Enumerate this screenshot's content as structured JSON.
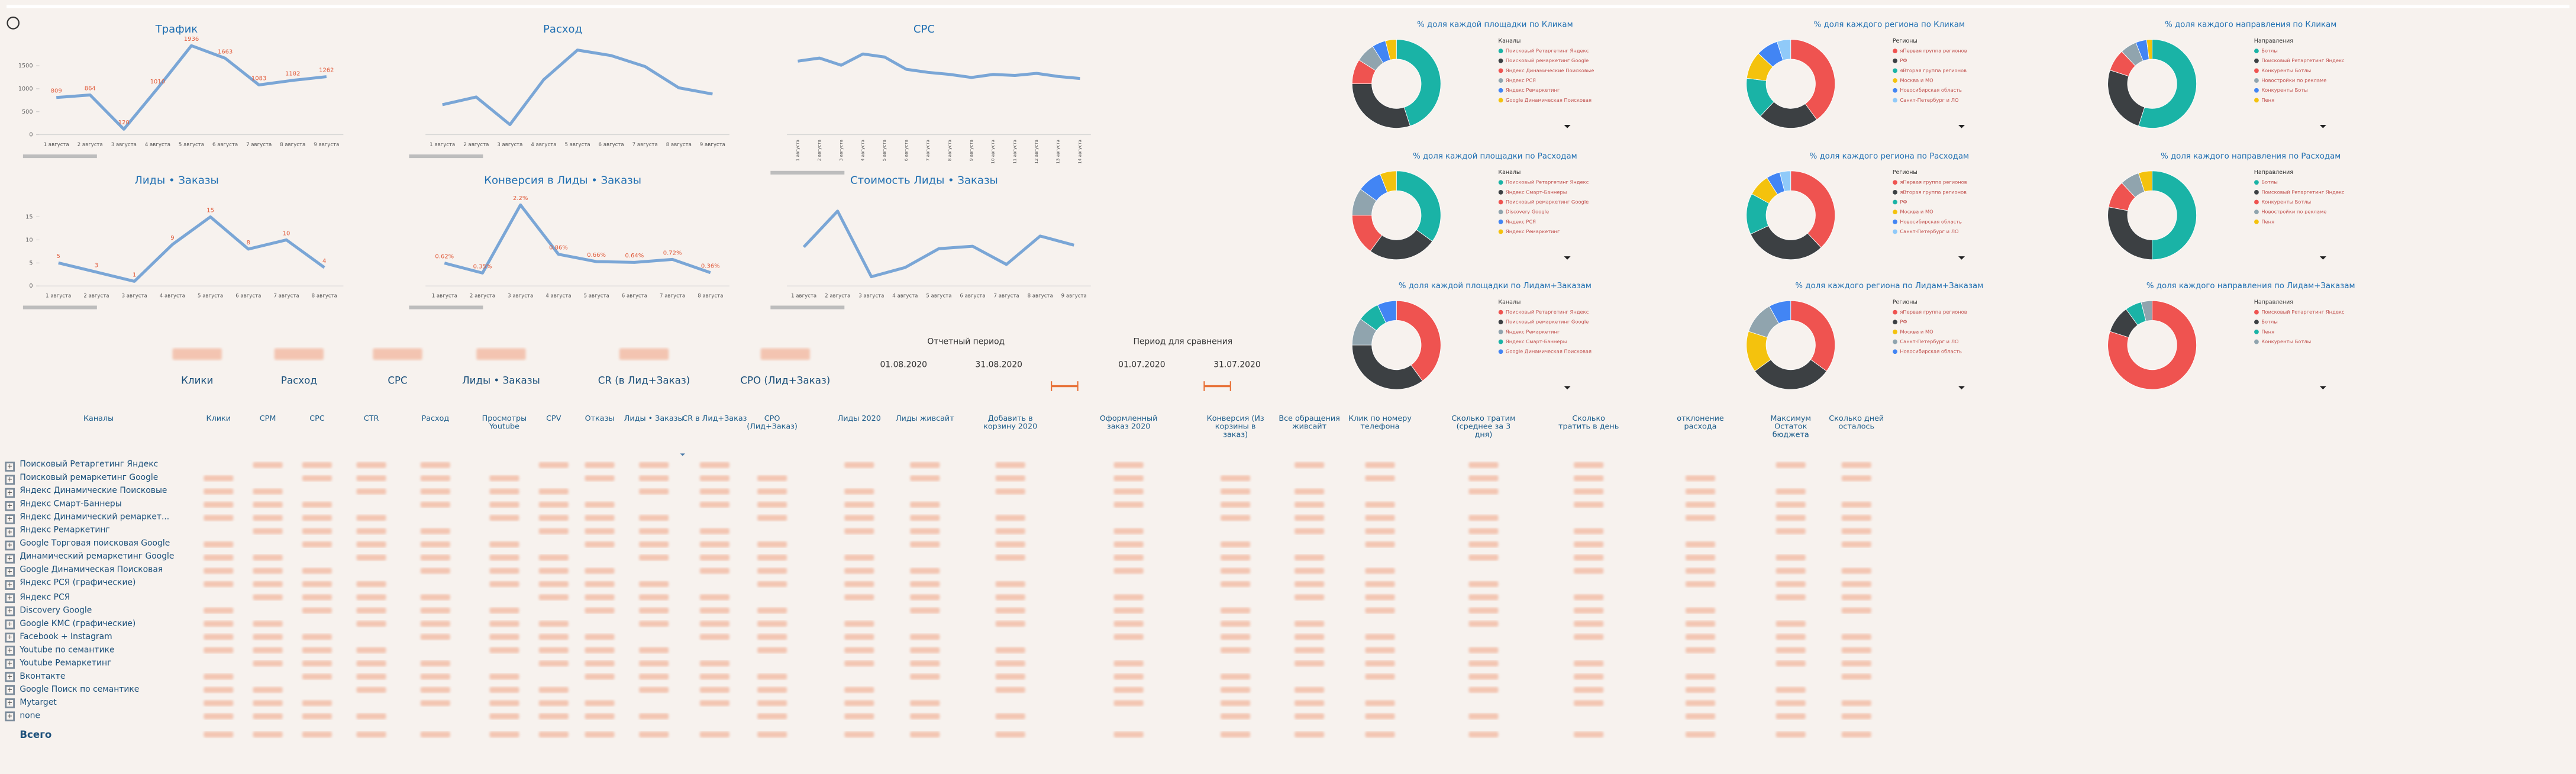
{
  "chart_data": [
    {
      "type": "line",
      "title": "Трафик",
      "categories": [
        "1 августа",
        "2 августа",
        "3 августа",
        "4 августа",
        "5 августа",
        "6 августа",
        "7 августа",
        "8 августа",
        "9 августа"
      ],
      "values": [
        809,
        864,
        120,
        1010,
        1936,
        1663,
        1083,
        1182,
        1262
      ],
      "color": "#7aa6d6",
      "ylim": [
        0,
        2000
      ],
      "yticks": [
        0,
        500,
        1000,
        1500
      ],
      "labels": true
    },
    {
      "type": "line",
      "title": "Расход",
      "categories": [
        "1 августа",
        "2 августа",
        "3 августа",
        "4 августа",
        "5 августа",
        "6 августа",
        "7 августа",
        "8 августа",
        "9 августа"
      ],
      "values": [
        3263,
        4100,
        1100,
        5984,
        9200,
        8600,
        7415,
        5100,
        4422
      ],
      "color": "#7aa6d6",
      "ylim": [
        0,
        10000
      ]
    },
    {
      "type": "line",
      "title": "CPC",
      "categories": [
        "1 августа",
        "2 августа",
        "3 августа",
        "4 августа",
        "5 августа",
        "6 августа",
        "7 августа",
        "8 августа",
        "9 августа",
        "10 августа",
        "11 августа",
        "12 августа",
        "13 августа",
        "14 августа"
      ],
      "values": [
        7.2,
        7.5,
        6.8,
        7.9,
        7.6,
        6.4,
        6.1,
        5.9,
        5.6,
        5.9,
        5.8,
        6.0,
        5.7,
        5.5
      ],
      "color": "#7aa6d6",
      "ylim": [
        0,
        9
      ],
      "rotate": true
    },
    {
      "type": "line",
      "title": "Лиды • Заказы",
      "categories": [
        "1 августа",
        "2 августа",
        "3 августа",
        "4 августа",
        "5 августа",
        "6 августа",
        "7 августа",
        "8 августа"
      ],
      "values": [
        5,
        3,
        1,
        9,
        15,
        8,
        10,
        4
      ],
      "color": "#7aa6d6",
      "ylim": [
        0,
        20
      ],
      "yticks": [
        0,
        5,
        10,
        15
      ],
      "labels": true
    },
    {
      "type": "line",
      "title": "Конверсия в Лиды • Заказы",
      "categories": [
        "1 августа",
        "2 августа",
        "3 августа",
        "4 августа",
        "5 августа",
        "6 августа",
        "7 августа",
        "8 августа"
      ],
      "values": [
        0.62,
        0.35,
        2.2,
        0.86,
        0.66,
        0.64,
        0.72,
        0.36
      ],
      "value_labels": [
        "0.62%",
        "0.35%",
        "2.2%",
        "0.86%",
        "0.66%",
        "0.64%",
        "0.72%",
        "0.36%"
      ],
      "color": "#7aa6d6",
      "ylim": [
        0,
        2.5
      ]
    },
    {
      "type": "line",
      "title": "Стоимость Лиды • Заказы",
      "categories": [
        "1 августа",
        "2 августа",
        "3 августа",
        "4 августа",
        "5 августа",
        "6 августа",
        "7 августа",
        "8 августа",
        "9 августа"
      ],
      "values": [
        1268.6,
        2438.6,
        300,
        600,
        1214.8,
        1292.9,
        700,
        1625.7,
        1328.3
      ],
      "color": "#7aa6d6",
      "ylim": [
        0,
        3000
      ]
    },
    {
      "type": "pie",
      "title": "% доля каждой площадки по Кликам",
      "legend_title": "Каналы",
      "categories": [
        "Поисковый Ретаргетинг Яндекс",
        "Поисковый ремаркетинг Google",
        "Яндекс Динамические Поисковые",
        "Яндекс РСЯ",
        "Яндекс Ремаркетинг",
        "Google Динамическая Поисковая"
      ],
      "values": [
        45,
        30,
        9,
        7,
        5,
        4
      ],
      "colors": [
        "#1ab3a6",
        "#3c4043",
        "#ef5350",
        "#90a4ae",
        "#4285f4",
        "#f4c20d"
      ]
    },
    {
      "type": "pie",
      "title": "% доля каждого региона по Кликам",
      "legend_title": "Регионы",
      "categories": [
        "яПервая группа регионов",
        "РФ",
        "яВторая группа регионов",
        "Москва и МО",
        "Новосибирская область",
        "Санкт-Петербург и ЛО"
      ],
      "values": [
        40,
        22,
        15,
        10,
        8,
        5
      ],
      "colors": [
        "#ef5350",
        "#3c4043",
        "#1ab3a6",
        "#f4c20d",
        "#4285f4",
        "#90caf9"
      ]
    },
    {
      "type": "pie",
      "title": "% доля каждого направления по Кликам",
      "legend_title": "Направления",
      "categories": [
        "Ботлы",
        "Поисковый Ретаргетинг Яндекс",
        "Конкуренты Ботлы",
        "Новостройки по рекламе",
        "Конкуренты Боты",
        "Пеня"
      ],
      "values": [
        55,
        25,
        8,
        6,
        4,
        2
      ],
      "colors": [
        "#1ab3a6",
        "#3c4043",
        "#ef5350",
        "#90a4ae",
        "#4285f4",
        "#f4c20d"
      ]
    },
    {
      "type": "pie",
      "title": "% доля каждой площадки по Расходам",
      "legend_title": "Каналы",
      "categories": [
        "Поисковый Ретаргетинг Яндекс",
        "Яндекс Смарт-Баннеры",
        "Поисковый ремаркетинг Google",
        "Discovery Google",
        "Яндекс РСЯ",
        "Яндекс Ремаркетинг"
      ],
      "values": [
        35,
        25,
        15,
        10,
        9,
        6
      ],
      "colors": [
        "#1ab3a6",
        "#3c4043",
        "#ef5350",
        "#90a4ae",
        "#4285f4",
        "#f4c20d"
      ]
    },
    {
      "type": "pie",
      "title": "% доля каждого региона по Расходам",
      "legend_title": "Регионы",
      "categories": [
        "яПервая группа регионов",
        "яВторая группа регионов",
        "РФ",
        "Москва и МО",
        "Новосибирская область",
        "Санкт-Петербург и ЛО"
      ],
      "values": [
        38,
        30,
        15,
        8,
        5,
        4
      ],
      "colors": [
        "#ef5350",
        "#3c4043",
        "#1ab3a6",
        "#f4c20d",
        "#4285f4",
        "#90caf9"
      ]
    },
    {
      "type": "pie",
      "title": "% доля каждого направления по Расходам",
      "legend_title": "Направления",
      "categories": [
        "Ботлы",
        "Поисковый Ретаргетинг Яндекс",
        "Конкуренты Ботлы",
        "Новостройки по рекламе",
        "Пеня"
      ],
      "values": [
        50,
        28,
        10,
        7,
        5
      ],
      "colors": [
        "#1ab3a6",
        "#3c4043",
        "#ef5350",
        "#90a4ae",
        "#f4c20d"
      ]
    },
    {
      "type": "pie",
      "title": "% доля каждой площадки по Лидам+Заказам",
      "legend_title": "Каналы",
      "categories": [
        "Поисковый Ретаргетинг Яндекс",
        "Поисковый ремаркетинг Google",
        "Яндекс Ремаркетинг",
        "Яндекс Смарт-Баннеры",
        "Google Динамическая Поисковая"
      ],
      "values": [
        40,
        35,
        10,
        8,
        7
      ],
      "colors": [
        "#ef5350",
        "#3c4043",
        "#90a4ae",
        "#1ab3a6",
        "#4285f4"
      ]
    },
    {
      "type": "pie",
      "title": "% доля каждого региона по Лидам+Заказам",
      "legend_title": "Регионы",
      "categories": [
        "яПервая группа регионов",
        "РФ",
        "Москва и МО",
        "Санкт-Петербург и ЛО",
        "Новосибирская область"
      ],
      "values": [
        35,
        30,
        15,
        12,
        8
      ],
      "colors": [
        "#ef5350",
        "#3c4043",
        "#f4c20d",
        "#90a4ae",
        "#4285f4"
      ]
    },
    {
      "type": "pie",
      "title": "% доля каждого направления по Лидам+Заказам",
      "legend_title": "Направления",
      "categories": [
        "Поисковый Ретаргетинг Яндекс",
        "Ботлы",
        "Пеня",
        "Конкуренты Ботлы"
      ],
      "values": [
        80,
        10,
        6,
        4
      ],
      "colors": [
        "#ef5350",
        "#3c4043",
        "#1ab3a6",
        "#90a4ae"
      ]
    }
  ],
  "kpis": [
    "Клики",
    "Расход",
    "CPC",
    "Лиды • Заказы",
    "CR (в Лид+Заказ)",
    "CPO (Лид+Заказ)"
  ],
  "periods": [
    {
      "title": "Отчетный период",
      "start": "01.08.2020",
      "end": "31.08.2020"
    },
    {
      "title": "Период для сравнения",
      "start": "01.07.2020",
      "end": "31.07.2020"
    }
  ],
  "table": {
    "headers": [
      "Каналы",
      "Клики",
      "CPM",
      "CPC",
      "CTR",
      "Расход",
      "Просмотры Youtube",
      "CPV",
      "Отказы",
      "Лиды • Заказы",
      "CR в Лид+Заказ",
      "CPO (Лид+Заказ)",
      "Лиды 2020",
      "Лиды живсайт",
      "Добавить в корзину 2020",
      "Оформленный заказ 2020",
      "Конверсия (Из корзины в заказ)",
      "Все обращения живсайт",
      "Клик по номеру телефона",
      "Сколько тратим (среднее за 3 дня)",
      "Сколько тратить в день",
      "отклонение расхода",
      "Максимум Остаток бюджета",
      "Сколько дней осталось"
    ],
    "rows": [
      "Поисковый Ретаргетинг Яндекс",
      "Поисковый ремаркетинг Google",
      "Яндекс Динамические Поисковые",
      "Яндекс Смарт-Баннеры",
      "Яндекс Динамический ремаркет...",
      "Яндекс Ремаркетинг",
      "Google Торговая поисковая Google",
      "Динамический ремаркетинг Google",
      "Google Динамическая Поисковая",
      "Яндекс РСЯ (графические)",
      "Яндекс РСЯ",
      "Discovery Google",
      "Google КМС (графические)",
      "Facebook + Instagram",
      "Youtube по семантике",
      "Youtube Ремаркетинг",
      "Вконтакте",
      "Google Поиск по семантике",
      "Mytarget",
      "none"
    ],
    "total": "Всего"
  }
}
